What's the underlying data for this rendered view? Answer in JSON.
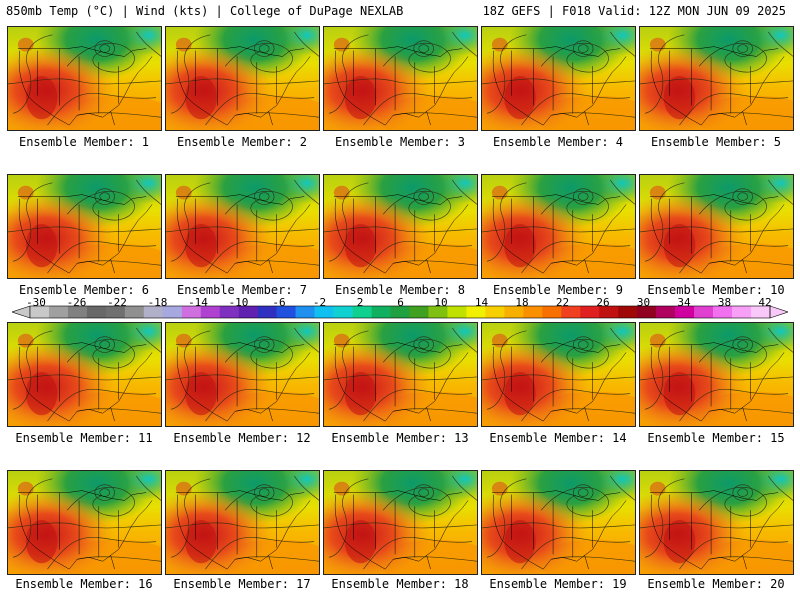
{
  "header": {
    "left_title": "850mb Temp (°C) | Wind (kts) | College of DuPage NEXLAB",
    "right_title": "18Z GEFS | F018 Valid: 12Z MON JUN 09 2025"
  },
  "caption_prefix": "Ensemble Member:",
  "members": [
    "1",
    "2",
    "3",
    "4",
    "5",
    "6",
    "7",
    "8",
    "9",
    "10",
    "11",
    "12",
    "13",
    "14",
    "15",
    "16",
    "17",
    "18",
    "19",
    "20"
  ],
  "colorbar": {
    "labels": [
      "-30",
      "-26",
      "-22",
      "-18",
      "-14",
      "-10",
      "-6",
      "-2",
      "2",
      "6",
      "10",
      "14",
      "18",
      "22",
      "26",
      "30",
      "34",
      "38",
      "42"
    ],
    "colors": [
      "#c8c8c8",
      "#a0a0a0",
      "#808080",
      "#686868",
      "#707070",
      "#909090",
      "#b0b0c8",
      "#a8a8e0",
      "#d070e0",
      "#b040d0",
      "#8030c0",
      "#6020b0",
      "#3030c0",
      "#2050e0",
      "#2090f0",
      "#10c0f0",
      "#10d0d0",
      "#10d090",
      "#10b060",
      "#20a040",
      "#40a020",
      "#80c010",
      "#c0e000",
      "#f0f000",
      "#f8d000",
      "#f8b000",
      "#f89000",
      "#f87000",
      "#f04020",
      "#e02020",
      "#c01010",
      "#a00808",
      "#900020",
      "#b00060",
      "#d000a0",
      "#e040d0",
      "#f070f0",
      "#f8a0f8",
      "#f8c8f8"
    ]
  }
}
